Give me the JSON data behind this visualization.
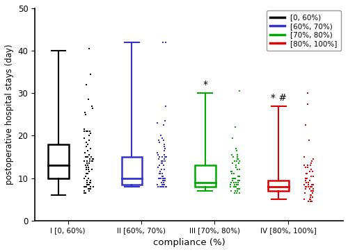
{
  "groups": [
    {
      "label": "I [0, 60%)",
      "color": "#000000",
      "median": 13.0,
      "q1": 10.0,
      "q3": 18.0,
      "whisker_low": 6.0,
      "whisker_high": 40.0,
      "dots": [
        40.5,
        34.5,
        32.0,
        28.5,
        27.0,
        26.5,
        25.5,
        25.0,
        21.5,
        21.0,
        21.0,
        21.0,
        21.0,
        21.0,
        20.5,
        20.0,
        19.5,
        19.0,
        18.5,
        18.0,
        17.5,
        17.0,
        16.5,
        16.0,
        15.5,
        15.0,
        15.0,
        15.0,
        15.0,
        14.5,
        14.5,
        14.5,
        14.0,
        14.0,
        14.0,
        14.0,
        14.0,
        13.5,
        13.5,
        13.0,
        13.0,
        12.5,
        12.5,
        12.0,
        12.0,
        12.0,
        11.5,
        11.0,
        11.0,
        11.0,
        10.5,
        10.5,
        10.0,
        10.0,
        10.0,
        9.5,
        9.5,
        9.5,
        9.0,
        9.0,
        9.0,
        9.0,
        8.5,
        8.5,
        8.5,
        8.5,
        8.0,
        8.0,
        8.0,
        8.0,
        8.0,
        7.5,
        7.5,
        7.5,
        7.0,
        7.0,
        6.5,
        6.5
      ],
      "annotation": ""
    },
    {
      "label": "II [60%, 70%)",
      "color": "#3333cc",
      "median": 10.0,
      "q1": 8.5,
      "q3": 15.0,
      "whisker_low": 8.0,
      "whisker_high": 42.0,
      "dots": [
        42.0,
        42.0,
        27.0,
        23.5,
        23.0,
        22.5,
        20.0,
        19.5,
        19.0,
        19.0,
        18.5,
        18.0,
        17.5,
        17.0,
        16.5,
        16.0,
        15.5,
        15.5,
        15.0,
        15.0,
        15.0,
        15.0,
        15.0,
        14.5,
        14.5,
        14.0,
        14.0,
        14.0,
        13.5,
        13.5,
        13.0,
        13.0,
        13.0,
        12.5,
        12.0,
        12.0,
        11.5,
        11.0,
        11.0,
        11.0,
        10.5,
        10.5,
        10.0,
        10.0,
        10.0,
        10.0,
        10.0,
        10.0,
        10.0,
        10.0,
        10.0,
        10.0,
        10.0,
        9.5,
        9.5,
        9.5,
        9.0,
        9.0,
        9.0,
        8.5,
        8.5,
        8.5,
        8.5,
        8.5,
        8.5,
        8.0,
        8.0,
        8.0,
        8.0,
        8.0,
        8.0,
        8.0,
        8.0,
        8.0,
        8.0,
        8.0
      ],
      "annotation": ""
    },
    {
      "label": "III [70%, 80%)",
      "color": "#00aa00",
      "median": 9.0,
      "q1": 8.0,
      "q3": 13.0,
      "whisker_low": 7.0,
      "whisker_high": 30.0,
      "dots": [
        30.5,
        22.0,
        19.5,
        17.0,
        16.5,
        15.5,
        15.5,
        15.0,
        15.0,
        14.5,
        14.5,
        14.0,
        14.0,
        14.0,
        13.5,
        13.5,
        13.0,
        12.5,
        12.0,
        12.0,
        11.5,
        11.5,
        11.0,
        11.0,
        10.5,
        10.5,
        10.0,
        10.0,
        10.0,
        9.5,
        9.5,
        9.5,
        9.0,
        9.0,
        9.0,
        9.0,
        8.5,
        8.5,
        8.5,
        8.5,
        8.0,
        8.0,
        8.0,
        8.0,
        7.5,
        7.5,
        7.5,
        7.0,
        7.0,
        7.0,
        6.5,
        6.5,
        6.5,
        6.5
      ],
      "annotation": "*"
    },
    {
      "label": "IV [80%, 100%]",
      "color": "#dd0000",
      "median": 8.0,
      "q1": 7.0,
      "q3": 9.5,
      "whisker_low": 5.0,
      "whisker_high": 27.0,
      "dots": [
        30.0,
        27.5,
        22.5,
        19.0,
        15.0,
        14.5,
        14.0,
        13.5,
        13.0,
        13.0,
        13.0,
        12.5,
        12.5,
        12.0,
        11.5,
        11.5,
        11.0,
        11.0,
        10.5,
        10.5,
        10.0,
        10.0,
        9.5,
        9.5,
        9.5,
        9.0,
        9.0,
        9.0,
        8.5,
        8.5,
        8.5,
        8.5,
        8.0,
        8.0,
        8.0,
        8.0,
        8.0,
        8.0,
        8.0,
        8.0,
        8.0,
        8.0,
        8.0,
        7.5,
        7.5,
        7.5,
        7.0,
        7.0,
        7.0,
        6.5,
        6.5,
        6.5,
        6.0,
        6.0,
        5.5,
        5.5,
        5.0,
        5.0,
        5.0,
        4.5,
        4.5,
        4.5
      ],
      "annotation": "* #"
    }
  ],
  "ylim": [
    0,
    50
  ],
  "yticks": [
    0,
    10,
    20,
    30,
    40,
    50
  ],
  "ylabel": "postoperative hospital stays (day)",
  "xlabel": "compliance (%)",
  "legend_labels": [
    "[0, 60%)",
    "[60%, 70%)",
    "[70%, 80%)",
    "[80%, 100%]"
  ],
  "legend_colors": [
    "#000000",
    "#3333cc",
    "#00aa00",
    "#dd0000"
  ],
  "figsize": [
    5.0,
    3.63
  ],
  "dpi": 100
}
